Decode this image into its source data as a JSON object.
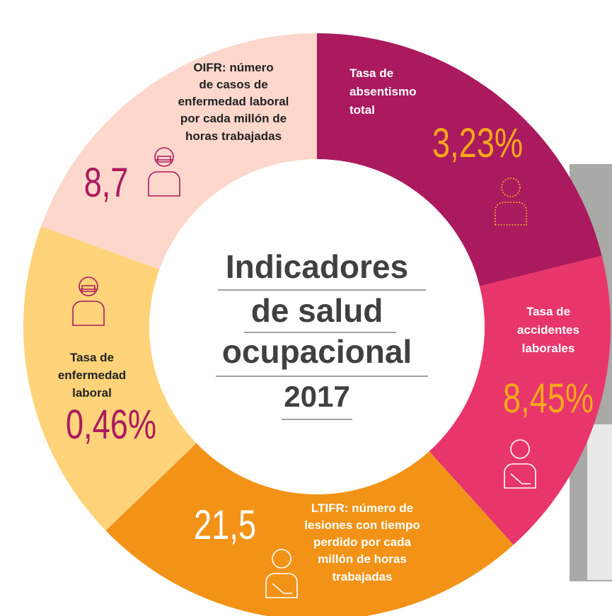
{
  "title": [
    "Indicadores",
    "de salud",
    "ocupacional",
    "2017"
  ],
  "segments": [
    {
      "label": [
        "Tasa de",
        "absentismo",
        "total"
      ],
      "value": "3,23%"
    },
    {
      "label": [
        "Tasa de",
        "accidentes",
        "laborales"
      ],
      "value": "8,45%"
    },
    {
      "label": [
        "LTIFR: número de",
        "lesiones con tiempo",
        "perdido por cada",
        "millón de horas",
        "trabajadas"
      ],
      "value": "21,5"
    },
    {
      "label": [
        "Tasa de",
        "enfermedad",
        "laboral"
      ],
      "value": "0,46%"
    },
    {
      "label": [
        "OIFR: número",
        "de casos de",
        "enfermedad laboral",
        "por cada millón de",
        "horas trabajadas"
      ],
      "value": "8,7"
    }
  ]
}
